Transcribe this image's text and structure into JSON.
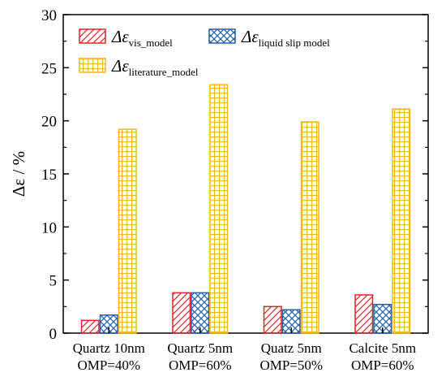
{
  "chart_data": {
    "type": "bar",
    "categories": [
      [
        "Quartz 10nm",
        "OMP=40%"
      ],
      [
        "Quartz 5nm",
        "OMP=60%"
      ],
      [
        "Quatz 5nm",
        "OMP=50%"
      ],
      [
        "Calcite 5nm",
        "OMP=60%"
      ]
    ],
    "series": [
      {
        "name_main": "Δε",
        "name_sub": "vis_model",
        "color": "#e0262b",
        "pattern": "diagonal",
        "values": [
          1.2,
          3.8,
          2.5,
          3.6
        ]
      },
      {
        "name_main": "Δε",
        "name_sub": "liquid slip model",
        "color": "#2a5fa8",
        "pattern": "crosshatch",
        "values": [
          1.7,
          3.8,
          2.2,
          2.7
        ]
      },
      {
        "name_main": "Δε",
        "name_sub": "literature_model",
        "color": "#f1b818",
        "pattern": "grid",
        "values": [
          19.2,
          23.4,
          19.9,
          21.1
        ]
      }
    ],
    "ylabel": "Δε / %",
    "ylim": [
      0,
      30
    ],
    "yticks": [
      0,
      5,
      10,
      15,
      20,
      25,
      30
    ],
    "legend": "top-left",
    "grid": false
  }
}
